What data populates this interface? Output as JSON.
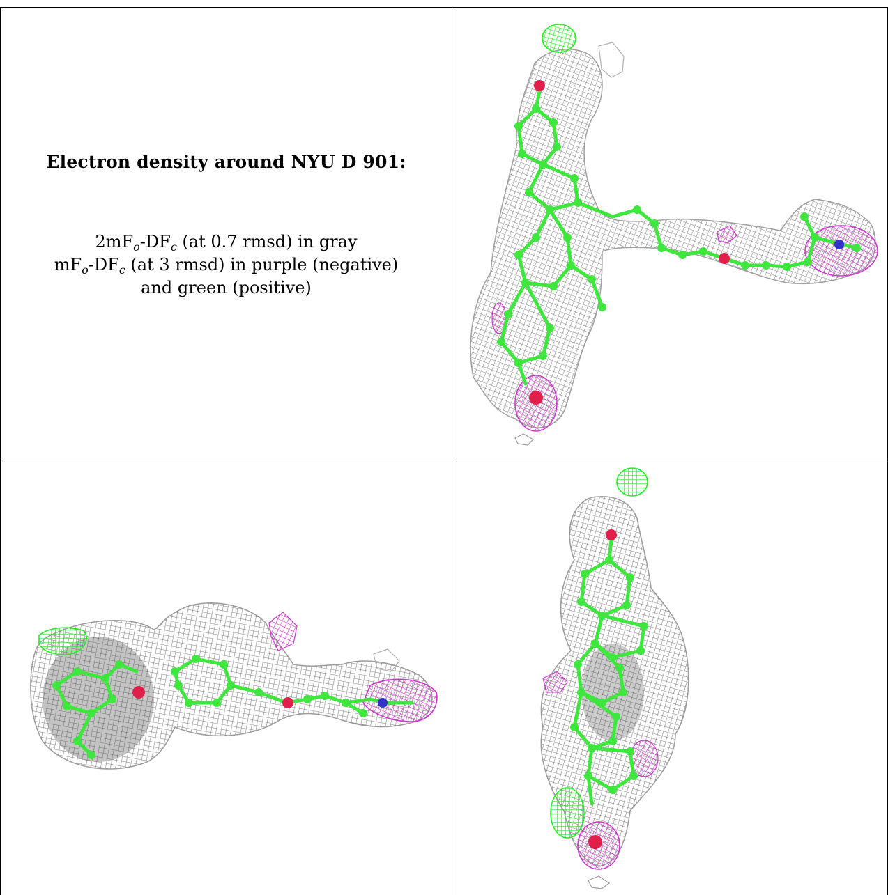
{
  "caption": {
    "title": "Electron density around NYU D 901:",
    "line1": {
      "a": "2mF",
      "sub1": "o",
      "b": "-DF",
      "sub2": "c",
      "c": " (at 0.7 rmsd) in gray"
    },
    "line2": {
      "a": "mF",
      "sub1": "o",
      "b": "-DF",
      "sub2": "c",
      "c": " (at 3 rmsd) in purple (negative)"
    },
    "line3": "and green (positive)"
  },
  "colors": {
    "mesh_gray": "#8c8c8c",
    "mesh_purple": "#cc33cc",
    "mesh_green": "#22ee22",
    "atom_carbon": "#3ee63e",
    "atom_oxygen": "#e0204a",
    "atom_nitrogen": "#3333cc"
  }
}
